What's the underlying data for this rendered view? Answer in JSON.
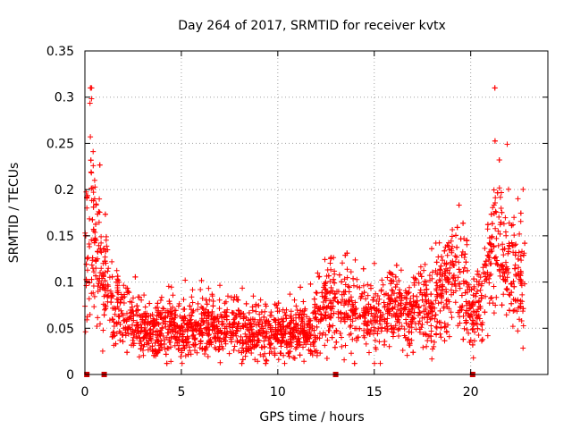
{
  "chart_data": {
    "type": "scatter",
    "title": "Day 264 of 2017, SRMTID for receiver kvtx",
    "xlabel": "GPS time / hours",
    "ylabel": "SRMTID / TECUs",
    "xlim": [
      0,
      24
    ],
    "ylim": [
      0,
      0.35
    ],
    "xticks": [
      0,
      5,
      10,
      15,
      20
    ],
    "xtick_labels": [
      "0",
      "5",
      "10",
      "15",
      "20"
    ],
    "yticks": [
      0,
      0.05,
      0.1,
      0.15,
      0.2,
      0.25,
      0.3,
      0.35
    ],
    "ytick_labels": [
      "0",
      "0.05",
      "0.1",
      "0.15",
      "0.2",
      "0.25",
      "0.3",
      "0.35"
    ],
    "grid": true,
    "marker": "+",
    "color": "#ff0000",
    "gap_markers_x": [
      0.1,
      1.0,
      13.0,
      20.1
    ],
    "profile": [
      [
        0.0,
        0.115
      ],
      [
        0.2,
        0.15
      ],
      [
        0.3,
        0.2
      ],
      [
        0.4,
        0.16
      ],
      [
        0.6,
        0.13
      ],
      [
        0.9,
        0.11
      ],
      [
        1.2,
        0.09
      ],
      [
        1.6,
        0.075
      ],
      [
        2.0,
        0.065
      ],
      [
        2.5,
        0.055
      ],
      [
        3.0,
        0.048
      ],
      [
        4.0,
        0.05
      ],
      [
        5.0,
        0.045
      ],
      [
        6.0,
        0.055
      ],
      [
        7.0,
        0.05
      ],
      [
        8.0,
        0.05
      ],
      [
        9.0,
        0.045
      ],
      [
        10.0,
        0.045
      ],
      [
        11.0,
        0.045
      ],
      [
        11.8,
        0.05
      ],
      [
        12.3,
        0.07
      ],
      [
        13.0,
        0.075
      ],
      [
        14.0,
        0.07
      ],
      [
        15.0,
        0.065
      ],
      [
        16.0,
        0.07
      ],
      [
        17.0,
        0.07
      ],
      [
        18.0,
        0.075
      ],
      [
        18.7,
        0.09
      ],
      [
        19.2,
        0.11
      ],
      [
        19.6,
        0.1
      ],
      [
        20.2,
        0.065
      ],
      [
        20.6,
        0.07
      ],
      [
        21.0,
        0.12
      ],
      [
        21.3,
        0.16
      ],
      [
        21.7,
        0.12
      ],
      [
        22.2,
        0.11
      ],
      [
        22.8,
        0.1
      ]
    ],
    "n_points": 3000
  }
}
